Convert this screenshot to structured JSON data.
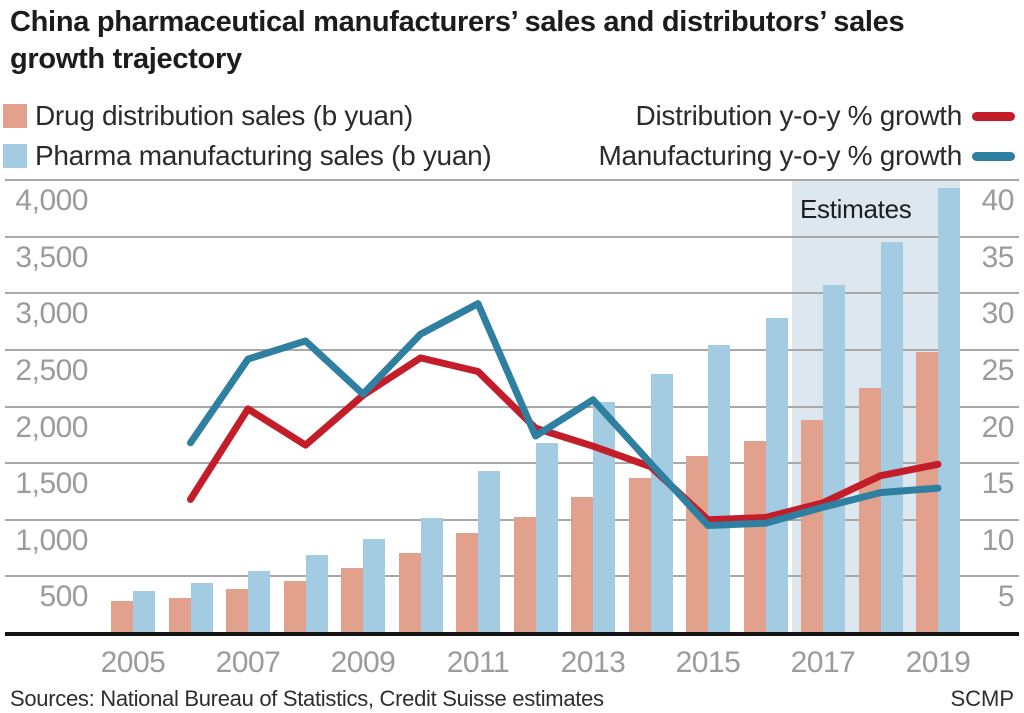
{
  "title": "China pharmaceutical manufacturers’ sales and distributors’ sales growth trajectory",
  "legend": {
    "bar_items": [
      {
        "label": "Drug distribution sales (b yuan)",
        "color": "#e2a18c"
      },
      {
        "label": "Pharma manufacturing sales (b yuan)",
        "color": "#a3cbe2"
      }
    ],
    "line_items": [
      {
        "label": "Distribution y-o-y % growth",
        "color": "#c41d2a"
      },
      {
        "label": "Manufacturing y-o-y % growth",
        "color": "#2f80a0"
      }
    ]
  },
  "footer": {
    "sources": "Sources: National Bureau of Statistics, Credit Suisse estimates",
    "credit": "SCMP"
  },
  "colors": {
    "distribution_bar": "#e2a18c",
    "manufacturing_bar": "#a3cbe2",
    "distribution_line": "#c41d2a",
    "manufacturing_line": "#2f80a0",
    "estimates_shade": "#dce7ef",
    "gridline": "#a8a8a8",
    "axis_text": "#9b9b9b"
  },
  "chart_data": {
    "type": "bar+line",
    "title": "China pharmaceutical manufacturers' sales and distributors' sales growth trajectory",
    "categories": [
      2005,
      2006,
      2007,
      2008,
      2009,
      2010,
      2011,
      2012,
      2013,
      2014,
      2015,
      2016,
      2017,
      2018,
      2019
    ],
    "x_tick_labels": [
      "2005",
      "2007",
      "2009",
      "2011",
      "2013",
      "2015",
      "2017",
      "2019"
    ],
    "bar_series": [
      {
        "name": "Drug distribution sales (b yuan)",
        "color": "#e2a18c",
        "values": [
          280,
          310,
          385,
          460,
          570,
          705,
          880,
          1025,
          1200,
          1370,
          1560,
          1700,
          1885,
          2160,
          2480
        ]
      },
      {
        "name": "Pharma manufacturing sales (b yuan)",
        "color": "#a3cbe2",
        "values": [
          370,
          440,
          550,
          690,
          830,
          1015,
          1430,
          1680,
          2040,
          2290,
          2540,
          2780,
          3070,
          3455,
          3930
        ]
      }
    ],
    "line_series": [
      {
        "name": "Distribution y-o-y % growth",
        "color": "#c41d2a",
        "start_year": 2006,
        "values": [
          11.8,
          19.8,
          16.6,
          21.0,
          24.3,
          23.1,
          18.1,
          16.5,
          14.7,
          10.0,
          10.2,
          11.5,
          13.9,
          14.9
        ]
      },
      {
        "name": "Manufacturing y-o-y % growth",
        "color": "#2f80a0",
        "start_year": 2006,
        "values": [
          16.8,
          24.2,
          25.8,
          21.1,
          26.4,
          29.1,
          17.4,
          20.6,
          15.0,
          9.5,
          9.7,
          11.1,
          12.4,
          12.8
        ]
      }
    ],
    "left_axis": {
      "unit": "b yuan",
      "tick_labels": [
        "4,000",
        "3,500",
        "3,000",
        "2,500",
        "2,000",
        "1,500",
        "1,000",
        "500"
      ],
      "max": 4000,
      "interval": 500
    },
    "right_axis": {
      "unit": "% growth",
      "tick_labels": [
        "40",
        "35",
        "30",
        "25",
        "20",
        "15",
        "10",
        "5"
      ],
      "max": 40,
      "interval": 5
    },
    "estimates_region": {
      "label": "Estimates",
      "from_year": 2017,
      "to_year": 2019
    },
    "grid": true,
    "legend_position": "top"
  }
}
